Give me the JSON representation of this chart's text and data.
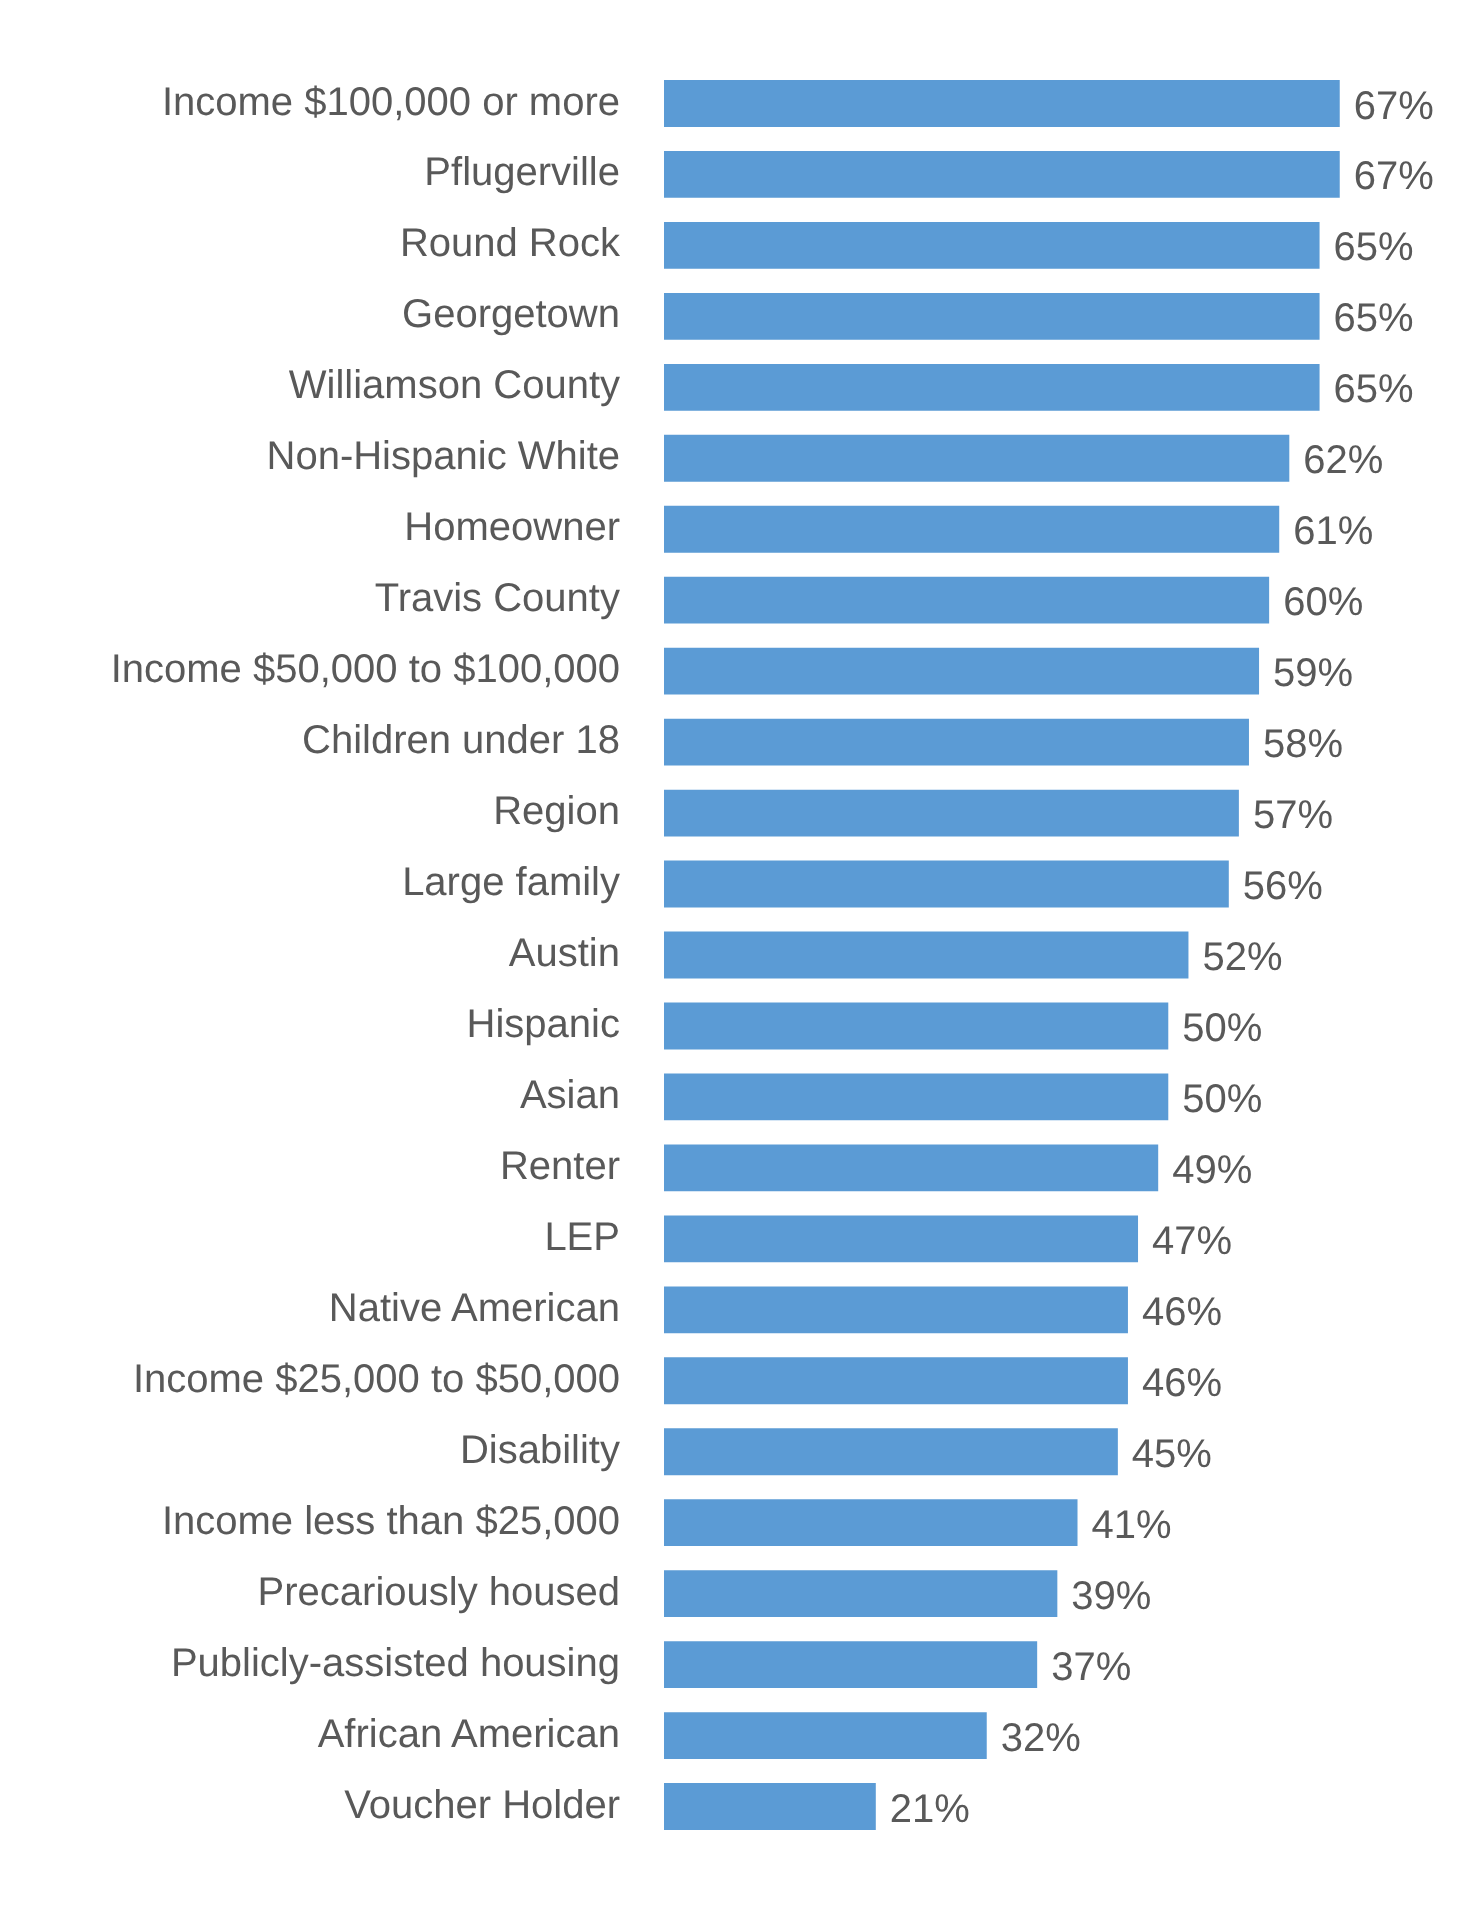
{
  "chart_data": {
    "type": "bar",
    "orientation": "horizontal",
    "categories": [
      "Income $100,000 or more",
      "Pflugerville",
      "Round Rock",
      "Georgetown",
      "Williamson County",
      "Non-Hispanic White",
      "Homeowner",
      "Travis County",
      "Income $50,000 to $100,000",
      "Children under 18",
      "Region",
      "Large family",
      "Austin",
      "Hispanic",
      "Asian",
      "Renter",
      "LEP",
      "Native American",
      "Income $25,000 to $50,000",
      "Disability",
      "Income less than $25,000",
      "Precariously housed",
      "Publicly-assisted housing",
      "African American",
      "Voucher Holder"
    ],
    "values": [
      67,
      67,
      65,
      65,
      65,
      62,
      61,
      60,
      59,
      58,
      57,
      56,
      52,
      50,
      50,
      49,
      47,
      46,
      46,
      45,
      41,
      39,
      37,
      32,
      21
    ],
    "value_labels": [
      "67%",
      "67%",
      "65%",
      "65%",
      "65%",
      "62%",
      "61%",
      "60%",
      "59%",
      "58%",
      "57%",
      "56%",
      "52%",
      "50%",
      "50%",
      "49%",
      "47%",
      "46%",
      "46%",
      "45%",
      "41%",
      "39%",
      "37%",
      "32%",
      "21%"
    ],
    "color": "#5b9bd5"
  }
}
